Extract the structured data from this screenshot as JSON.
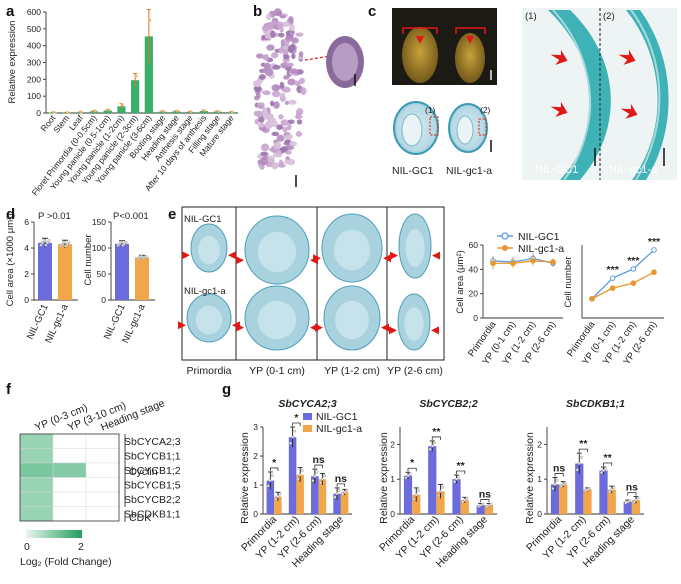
{
  "panels": {
    "a": "a",
    "b": "b",
    "c": "c",
    "d": "d",
    "e": "e",
    "f": "f",
    "g": "g"
  },
  "colors": {
    "gc1": "#6b6bdc",
    "gc1a": "#f2a64a",
    "line_gc1": "#5a9ee0",
    "line_gc1a": "#e8972c",
    "bar_a": "#38b06a",
    "bar_a_err": "#e07a1c",
    "heat_low": "#e9f6ef",
    "heat_high": "#1f9e5c"
  },
  "panel_a": {
    "ylabel": "Relative expression",
    "yticks": [
      "0",
      "100",
      "200",
      "300",
      "400",
      "500",
      "600"
    ],
    "categories": [
      "Root",
      "Stem",
      "Leaf",
      "Floret Primordia (0-0.5cm)",
      "Young panicle (0.5-1cm)",
      "Young panicle (1-2cm)",
      "Young panicle (2-3cm)",
      "Young panicle (3-6cm)",
      "Booting stage",
      "Heading stage",
      "Anthesis stage",
      "After 10 days of anthesis",
      "Filling stage",
      "Mature stage"
    ]
  },
  "panel_c": {
    "labels": [
      "NIL-GC1",
      "NIL-gc1-a"
    ],
    "zoom_labels": [
      "NIL-GC1",
      "NIL-gc1-a"
    ],
    "zoom_idx": [
      "(1)",
      "(2)"
    ],
    "ann": [
      "(1)",
      "(2)"
    ]
  },
  "panel_d": {
    "left": {
      "ylabel": "Cell area (×1000 μm²)",
      "pval": "P >0.01",
      "yticks": [
        "0",
        "2",
        "4",
        "6"
      ]
    },
    "right": {
      "ylabel": "Cell number",
      "pval": "P<0.001",
      "yticks": [
        "0",
        "50",
        "100",
        "150"
      ]
    },
    "xlabels": [
      "NIL-GC1",
      "NIL-gc1-a"
    ]
  },
  "panel_e": {
    "row_labels": [
      "NIL-GC1",
      "NIL-gc1-a"
    ],
    "col_labels": [
      "Primordia",
      "YP (0-1 cm)",
      "YP (1-2 cm)",
      "YP (2-6 cm)"
    ],
    "legend": [
      "NIL-GC1",
      "NIL-gc1-a"
    ],
    "area": {
      "ylabel": "Cell area (μm²)",
      "yticks": [
        "0",
        "20",
        "40",
        "60"
      ]
    },
    "number": {
      "ylabel": "Cell number",
      "stars": [
        "***",
        "***",
        "***"
      ]
    },
    "xlabels": [
      "Primordia",
      "YP (0-1 cm)",
      "YP (1-2 cm)",
      "YP (2-6 cm)"
    ]
  },
  "panel_f": {
    "cols": [
      "YP (0-3 cm)",
      "YP (3-10 cm)",
      "Heading stage"
    ],
    "rows": [
      "SbCYCA2;3",
      "SbCYCB1;1",
      "SbCYCB1;2",
      "SbCYCB1;5",
      "SbCYCB2;2",
      "SbCDKB1;1"
    ],
    "groups": {
      "cyclin": "Cyclin",
      "cdk": "CDK"
    },
    "legend_min": "0",
    "legend_max": "2",
    "legend_label": "Log₂ (Fold Change)"
  },
  "panel_g": {
    "ylabel": "Relative expression",
    "legend": [
      "NIL-GC1",
      "NIL-gc1-a"
    ],
    "xlabels": [
      "Primordia",
      "YP (1-2 cm)",
      "YP (2-6 cm)",
      "Heading stage"
    ],
    "charts": [
      {
        "title": "SbCYCA2;3",
        "yticks": [
          "0",
          "1",
          "2",
          "3"
        ],
        "sig": [
          "*",
          "*",
          "ns",
          "ns"
        ]
      },
      {
        "title": "SbCYCB2;2",
        "yticks": [
          "0",
          "1",
          "2"
        ],
        "sig": [
          "*",
          "**",
          "**",
          "ns"
        ]
      },
      {
        "title": "SbCDKB1;1",
        "yticks": [
          "0",
          "1",
          "2"
        ],
        "sig": [
          "ns",
          "**",
          "**",
          "ns"
        ]
      }
    ]
  },
  "chart_data": [
    {
      "type": "bar",
      "title": "",
      "ylabel": "Relative expression",
      "ylim": [
        0,
        600
      ],
      "categories": [
        "Root",
        "Stem",
        "Leaf",
        "Floret Primordia (0-0.5cm)",
        "Young panicle (0.5-1cm)",
        "Young panicle (1-2cm)",
        "Young panicle (2-3cm)",
        "Young panicle (3-6cm)",
        "Booting stage",
        "Heading stage",
        "Anthesis stage",
        "After 10 days of anthesis",
        "Filling stage",
        "Mature stage"
      ],
      "values": [
        3,
        2,
        5,
        10,
        15,
        40,
        195,
        455,
        8,
        10,
        6,
        12,
        8,
        5
      ],
      "errors": [
        2,
        2,
        2,
        4,
        6,
        15,
        40,
        160,
        4,
        4,
        3,
        5,
        4,
        3
      ]
    },
    {
      "type": "bar",
      "title": "",
      "ylabel": "Cell area (×1000 μm²)",
      "ylim": [
        0,
        6
      ],
      "categories": [
        "NIL-GC1",
        "NIL-gc1-a"
      ],
      "values": [
        4.4,
        4.3
      ],
      "errors": [
        0.35,
        0.3
      ]
    },
    {
      "type": "bar",
      "title": "",
      "ylabel": "Cell number",
      "ylim": [
        0,
        150
      ],
      "categories": [
        "NIL-GC1",
        "NIL-gc1-a"
      ],
      "values": [
        108,
        82
      ],
      "errors": [
        6,
        4
      ]
    },
    {
      "type": "line",
      "title": "",
      "ylabel": "Cell area (μm²)",
      "ylim": [
        0,
        60
      ],
      "x": [
        "Primordia",
        "YP (0-1 cm)",
        "YP (1-2 cm)",
        "YP (2-6 cm)"
      ],
      "series": [
        {
          "name": "NIL-GC1",
          "values": [
            47,
            46,
            49,
            45
          ],
          "errors": [
            4,
            4,
            4,
            3
          ]
        },
        {
          "name": "NIL-gc1-a",
          "values": [
            45,
            45,
            47,
            46
          ],
          "errors": [
            5,
            4,
            4,
            3
          ]
        }
      ]
    },
    {
      "type": "line",
      "title": "",
      "ylabel": "Cell number",
      "ylim": [
        0,
        220
      ],
      "x": [
        "Primordia",
        "YP (0-1 cm)",
        "YP (1-2 cm)",
        "YP (2-6 cm)"
      ],
      "series": [
        {
          "name": "NIL-GC1",
          "values": [
            58,
            120,
            148,
            205
          ]
        },
        {
          "name": "NIL-gc1-a",
          "values": [
            58,
            90,
            105,
            138
          ]
        }
      ]
    },
    {
      "type": "heatmap",
      "title": "",
      "rows": [
        "SbCYCA2;3",
        "SbCYCB1;1",
        "SbCYCB1;2",
        "SbCYCB1;5",
        "SbCYCB2;2",
        "SbCDKB1;1"
      ],
      "cols": [
        "YP (0-3 cm)",
        "YP (3-10 cm)",
        "Heading stage"
      ],
      "values": [
        [
          0.8,
          0,
          0
        ],
        [
          0.8,
          0,
          0
        ],
        [
          1.1,
          1.0,
          0
        ],
        [
          0.8,
          0,
          0
        ],
        [
          0.8,
          0,
          0
        ],
        [
          0.8,
          0,
          0
        ]
      ],
      "range": [
        0,
        2
      ]
    },
    {
      "type": "bar",
      "title": "SbCYCA2;3",
      "ylabel": "Relative expression",
      "ylim": [
        0,
        3
      ],
      "categories": [
        "Primordia",
        "YP (1-2 cm)",
        "YP (2-6 cm)",
        "Heading stage"
      ],
      "series": [
        {
          "name": "NIL-GC1",
          "values": [
            1.15,
            2.65,
            1.3,
            0.7
          ],
          "errors": [
            0.3,
            0.35,
            0.25,
            0.2
          ]
        },
        {
          "name": "NIL-gc1-a",
          "values": [
            0.6,
            1.35,
            1.2,
            0.75
          ],
          "errors": [
            0.15,
            0.25,
            0.2,
            0.1
          ]
        }
      ]
    },
    {
      "type": "bar",
      "title": "SbCYCB2;2",
      "ylabel": "Relative expression",
      "ylim": [
        0,
        2.5
      ],
      "categories": [
        "Primordia",
        "YP (1-2 cm)",
        "YP (2-6 cm)",
        "Heading stage"
      ],
      "series": [
        {
          "name": "NIL-GC1",
          "values": [
            1.1,
            1.95,
            1.0,
            0.25
          ],
          "errors": [
            0.1,
            0.15,
            0.12,
            0.05
          ]
        },
        {
          "name": "NIL-gc1-a",
          "values": [
            0.55,
            0.65,
            0.4,
            0.25
          ],
          "errors": [
            0.2,
            0.2,
            0.08,
            0.05
          ]
        }
      ]
    },
    {
      "type": "bar",
      "title": "SbCDKB1;1",
      "ylabel": "Relative expression",
      "ylim": [
        0,
        2.5
      ],
      "categories": [
        "Primordia",
        "YP (1-2 cm)",
        "YP (2-6 cm)",
        "Heading stage"
      ],
      "series": [
        {
          "name": "NIL-GC1",
          "values": [
            0.85,
            1.45,
            1.25,
            0.35
          ],
          "errors": [
            0.2,
            0.3,
            0.1,
            0.05
          ]
        },
        {
          "name": "NIL-gc1-a",
          "values": [
            0.85,
            0.7,
            0.7,
            0.4
          ],
          "errors": [
            0.08,
            0.05,
            0.1,
            0.1
          ]
        }
      ]
    }
  ]
}
